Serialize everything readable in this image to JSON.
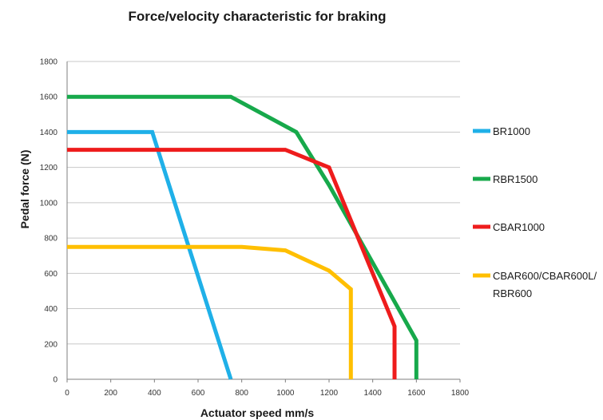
{
  "chart_data": {
    "type": "line",
    "title": "Force/velocity characteristic for braking",
    "xlabel": "Actuator speed mm/s",
    "ylabel": "Pedal force (N)",
    "xlim": [
      0,
      1800
    ],
    "ylim": [
      0,
      1800
    ],
    "xticks": [
      0,
      200,
      400,
      600,
      800,
      1000,
      1200,
      1400,
      1600,
      1800
    ],
    "yticks": [
      0,
      200,
      400,
      600,
      800,
      1000,
      1200,
      1400,
      1600,
      1800
    ],
    "grid": "horizontal",
    "legend_position": "right",
    "series": [
      {
        "name": "BR1000",
        "color": "#1fb0e8",
        "points": [
          [
            0,
            1400
          ],
          [
            390,
            1400
          ],
          [
            750,
            0
          ]
        ]
      },
      {
        "name": "RBR1500",
        "color": "#17a94b",
        "points": [
          [
            0,
            1600
          ],
          [
            750,
            1600
          ],
          [
            1050,
            1400
          ],
          [
            1200,
            1100
          ],
          [
            1600,
            220
          ],
          [
            1600,
            0
          ]
        ]
      },
      {
        "name": "CBAR1000",
        "color": "#ee1c1c",
        "points": [
          [
            0,
            1300
          ],
          [
            1000,
            1300
          ],
          [
            1200,
            1200
          ],
          [
            1500,
            300
          ],
          [
            1500,
            0
          ]
        ]
      },
      {
        "name": "CBAR600/CBAR600L/",
        "name_line2": "RBR600",
        "color": "#ffbf00",
        "points": [
          [
            0,
            750
          ],
          [
            800,
            750
          ],
          [
            1000,
            730
          ],
          [
            1200,
            615
          ],
          [
            1300,
            510
          ],
          [
            1300,
            0
          ]
        ]
      }
    ]
  }
}
